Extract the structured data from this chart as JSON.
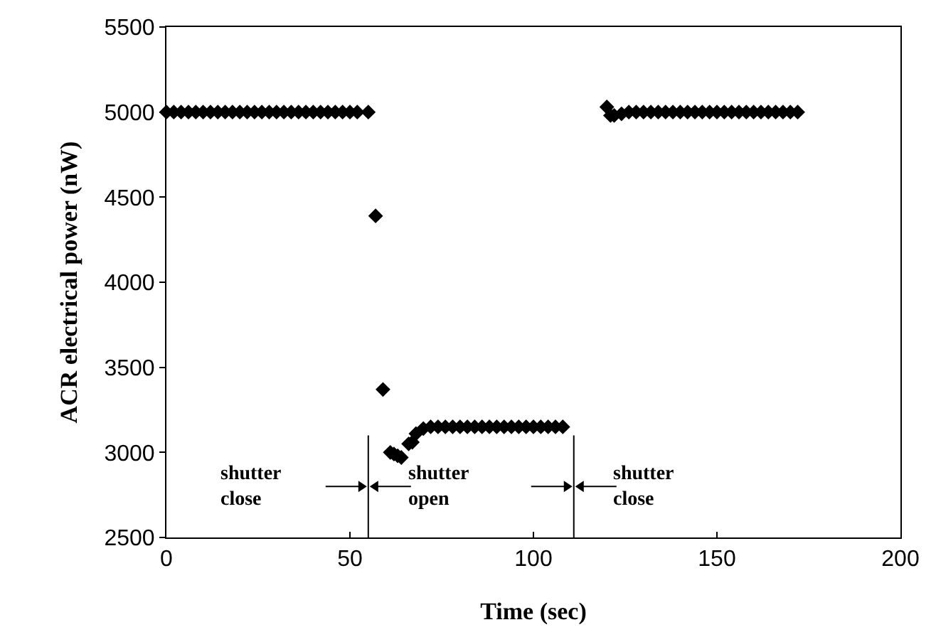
{
  "chart_data": {
    "type": "scatter",
    "xlabel": "Time (sec)",
    "ylabel": "ACR electrical power (nW)",
    "x": [
      0,
      2,
      4,
      6,
      8,
      10,
      12,
      14,
      16,
      18,
      20,
      22,
      24,
      26,
      28,
      30,
      32,
      34,
      36,
      38,
      40,
      42,
      44,
      46,
      48,
      50,
      52,
      55,
      57,
      59,
      61,
      62,
      63,
      64,
      66,
      67,
      68,
      70,
      72,
      74,
      76,
      78,
      80,
      82,
      84,
      86,
      88,
      90,
      92,
      94,
      96,
      98,
      100,
      102,
      104,
      106,
      108,
      120,
      121,
      122,
      124,
      126,
      128,
      130,
      132,
      134,
      136,
      138,
      140,
      142,
      144,
      146,
      148,
      150,
      152,
      154,
      156,
      158,
      160,
      162,
      164,
      166,
      168,
      170,
      172
    ],
    "values": [
      5000,
      5000,
      5000,
      5000,
      5000,
      5000,
      5000,
      5000,
      5000,
      5000,
      5000,
      5000,
      5000,
      5000,
      5000,
      5000,
      5000,
      5000,
      5000,
      5000,
      5000,
      5000,
      5000,
      5000,
      5000,
      5000,
      5000,
      5000,
      4390,
      3370,
      3000,
      2990,
      2980,
      2970,
      3050,
      3060,
      3110,
      3140,
      3150,
      3150,
      3150,
      3150,
      3150,
      3150,
      3150,
      3150,
      3150,
      3150,
      3150,
      3150,
      3150,
      3150,
      3150,
      3150,
      3150,
      3150,
      3150,
      5030,
      4980,
      4980,
      4990,
      5000,
      5000,
      5000,
      5000,
      5000,
      5000,
      5000,
      5000,
      5000,
      5000,
      5000,
      5000,
      5000,
      5000,
      5000,
      5000,
      5000,
      5000,
      5000,
      5000,
      5000,
      5000,
      5000,
      5000
    ],
    "color": "#000000",
    "marker": "diamond",
    "grid": false,
    "xlim": [
      0,
      200
    ],
    "xticks": [
      0,
      50,
      100,
      150,
      200
    ],
    "ylim": [
      2500,
      5500
    ],
    "yticks": [
      2500,
      3000,
      3500,
      4000,
      4500,
      5000,
      5500
    ],
    "ref_lines": [
      {
        "axis": "x",
        "value": 55
      },
      {
        "axis": "x",
        "value": 111
      }
    ],
    "annotations": [
      "shutter\nclose",
      "shutter\nopen",
      "shutter\nclose"
    ]
  }
}
